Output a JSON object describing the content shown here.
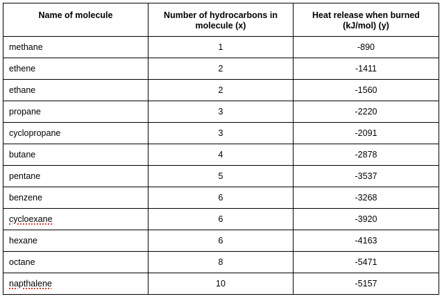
{
  "table": {
    "headers": [
      "Name of molecule",
      "Number of hydrocarbons in molecule (x)",
      "Heat release when burned (kJ/mol) (y)"
    ],
    "rows": [
      {
        "name": "methane",
        "x": "1",
        "y": "-890"
      },
      {
        "name": "ethene",
        "x": "2",
        "y": "-1411"
      },
      {
        "name": "ethane",
        "x": "2",
        "y": "-1560"
      },
      {
        "name": "propane",
        "x": "3",
        "y": "-2220"
      },
      {
        "name": "cyclopropane",
        "x": "3",
        "y": "-2091"
      },
      {
        "name": "butane",
        "x": "4",
        "y": "-2878"
      },
      {
        "name": "pentane",
        "x": "5",
        "y": "-3537"
      },
      {
        "name": "benzene",
        "x": "6",
        "y": "-3268"
      },
      {
        "name": "cycloexane",
        "x": "6",
        "y": "-3920"
      },
      {
        "name": "hexane",
        "x": "6",
        "y": "-4163"
      },
      {
        "name": "octane",
        "x": "8",
        "y": "-5471"
      },
      {
        "name": "napthalene",
        "x": "10",
        "y": "-5157"
      }
    ]
  },
  "colors": {
    "border": "#000000",
    "spellcheck_underline": "#d23b2b"
  }
}
